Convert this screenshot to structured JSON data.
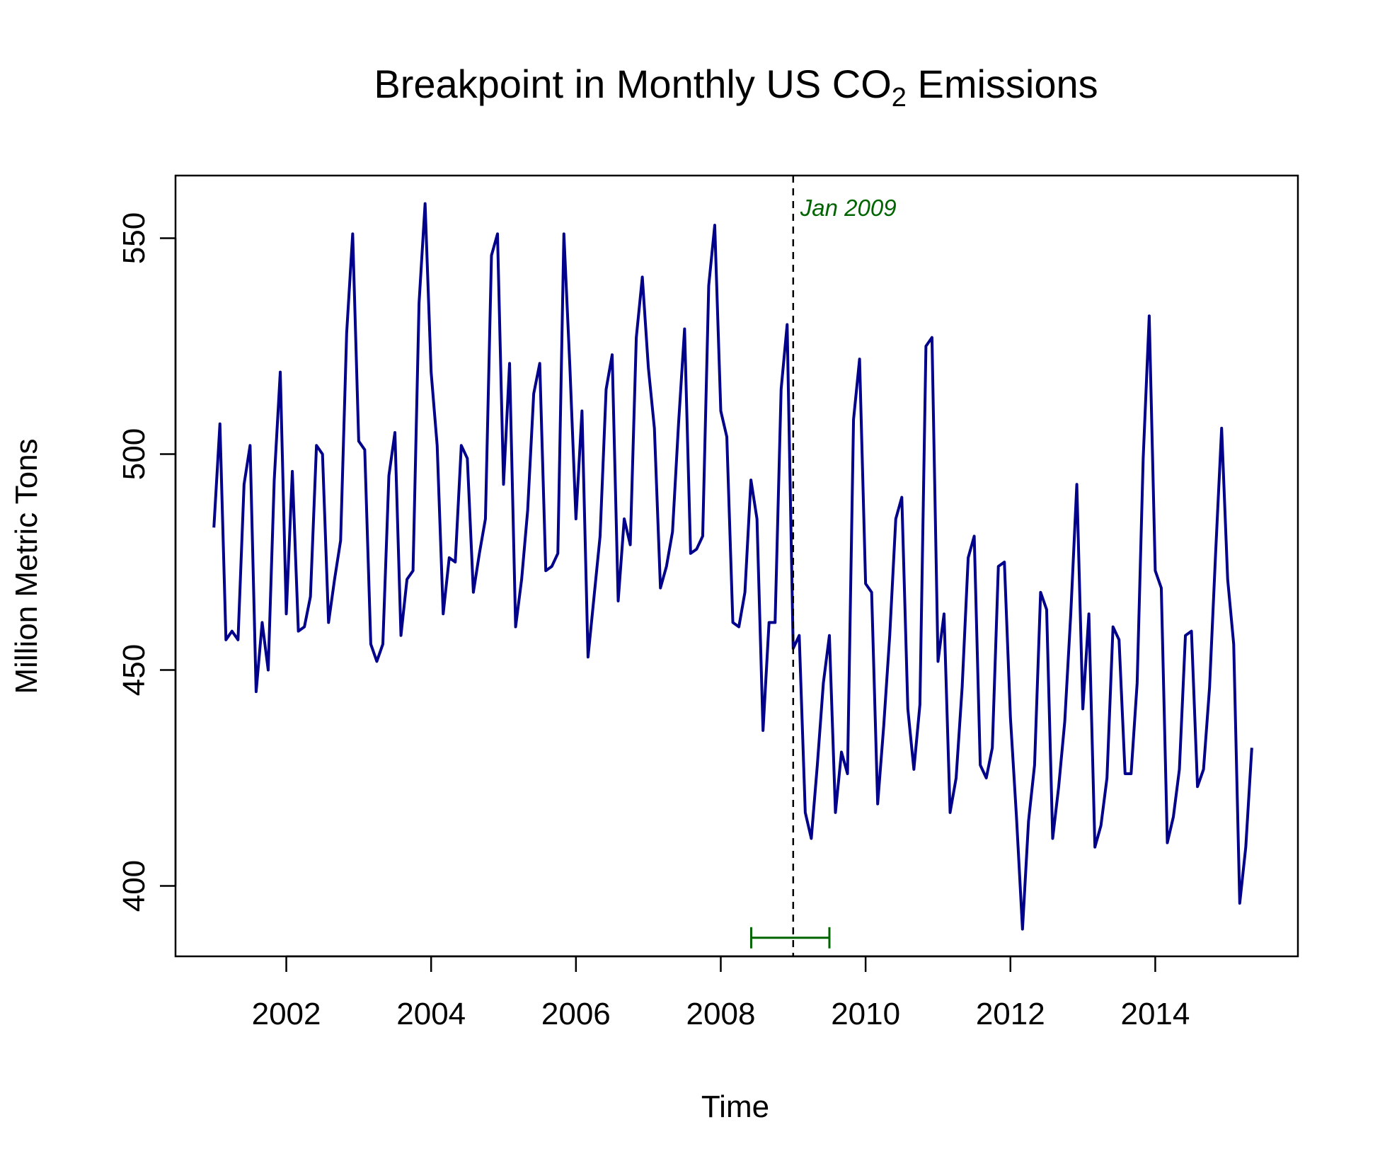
{
  "chart_data": {
    "type": "line",
    "title": "Breakpoint in Monthly US CO",
    "title_subscript": "2",
    "title_suffix": " Emissions",
    "xlabel": "Time",
    "ylabel": "Million Metric Tons",
    "x_ticks": [
      "2002",
      "2004",
      "2006",
      "2008",
      "2010",
      "2012",
      "2014"
    ],
    "y_ticks": [
      "400",
      "450",
      "500",
      "550"
    ],
    "xlim": [
      2000.47,
      2015.97
    ],
    "ylim": [
      383.7,
      564.5
    ],
    "x_start": 2001.0,
    "x_step": 0.08333333,
    "series": [
      {
        "color": "#00008B",
        "values": [
          483,
          507,
          457,
          459,
          457,
          493,
          502,
          445,
          461,
          450,
          494,
          519,
          463,
          496,
          459,
          460,
          467,
          502,
          500,
          461,
          471,
          480,
          528,
          551,
          503,
          501,
          456,
          452,
          456,
          495,
          505,
          458,
          471,
          473,
          535,
          558,
          519,
          502,
          463,
          476,
          475,
          502,
          499,
          468,
          477,
          485,
          546,
          551,
          493,
          521,
          460,
          471,
          487,
          514,
          521,
          473,
          474,
          477,
          551,
          520,
          485,
          510,
          453,
          467,
          481,
          515,
          523,
          466,
          485,
          479,
          527,
          541,
          520,
          506,
          469,
          474,
          482,
          507,
          529,
          477,
          478,
          481,
          539,
          553,
          510,
          504,
          461,
          460,
          468,
          494,
          485,
          436,
          461,
          461,
          515,
          530,
          455,
          458,
          417,
          411,
          428,
          447,
          458,
          417,
          431,
          426,
          508,
          522,
          470,
          468,
          419,
          437,
          458,
          485,
          490,
          441,
          427,
          442,
          525,
          527,
          452,
          463,
          417,
          425,
          446,
          476,
          481,
          428,
          425,
          432,
          474,
          475,
          439,
          416,
          390,
          415,
          428,
          468,
          464,
          411,
          423,
          438,
          463,
          493,
          441,
          463,
          409,
          414,
          425,
          460,
          457,
          426,
          426,
          447,
          499,
          532,
          473,
          469,
          410,
          416,
          427,
          458,
          459,
          423,
          427,
          446,
          477,
          506,
          471,
          456,
          396,
          409,
          432
        ]
      }
    ],
    "breakpoint": {
      "x": 2009.0,
      "label": "Jan 2009",
      "color": "#006400",
      "ci": [
        2008.42,
        2009.5
      ],
      "ci_y": 388
    },
    "grid": false,
    "legend": "none"
  }
}
